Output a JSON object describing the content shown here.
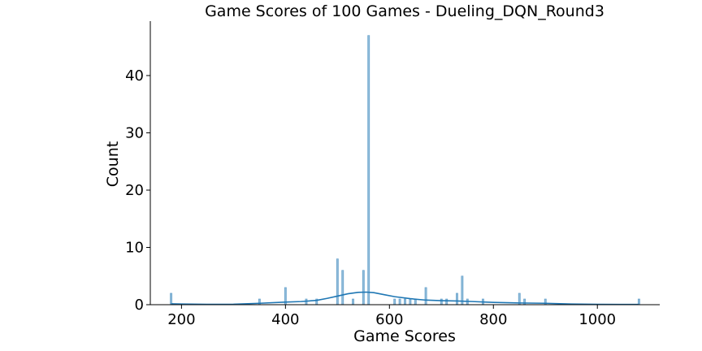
{
  "chart_data": {
    "type": "bar",
    "title": "Game Scores of 100 Games - Dueling_DQN_Round3",
    "xlabel": "Game Scores",
    "ylabel": "Count",
    "xlim": [
      140,
      1120
    ],
    "ylim": [
      0,
      49.5
    ],
    "x_ticks": [
      200,
      400,
      600,
      800,
      1000
    ],
    "y_ticks": [
      0,
      10,
      20,
      30,
      40
    ],
    "grid": false,
    "legend": "none",
    "bar_color": "#1f77b4",
    "kde_color": "#1f77b4",
    "bin_width": 3.6,
    "bins": [
      {
        "x": 180,
        "count": 2
      },
      {
        "x": 350,
        "count": 1
      },
      {
        "x": 400,
        "count": 3
      },
      {
        "x": 440,
        "count": 1
      },
      {
        "x": 460,
        "count": 1
      },
      {
        "x": 500,
        "count": 8
      },
      {
        "x": 510,
        "count": 6
      },
      {
        "x": 530,
        "count": 1
      },
      {
        "x": 550,
        "count": 6
      },
      {
        "x": 560,
        "count": 47
      },
      {
        "x": 610,
        "count": 1
      },
      {
        "x": 620,
        "count": 1
      },
      {
        "x": 630,
        "count": 1
      },
      {
        "x": 640,
        "count": 1
      },
      {
        "x": 650,
        "count": 1
      },
      {
        "x": 670,
        "count": 3
      },
      {
        "x": 700,
        "count": 1
      },
      {
        "x": 710,
        "count": 1
      },
      {
        "x": 730,
        "count": 2
      },
      {
        "x": 740,
        "count": 5
      },
      {
        "x": 750,
        "count": 1
      },
      {
        "x": 780,
        "count": 1
      },
      {
        "x": 850,
        "count": 2
      },
      {
        "x": 860,
        "count": 1
      },
      {
        "x": 900,
        "count": 1
      },
      {
        "x": 1080,
        "count": 1
      }
    ],
    "kde": {
      "x": [
        180,
        200,
        250,
        300,
        350,
        400,
        430,
        460,
        480,
        500,
        520,
        540,
        555,
        570,
        590,
        610,
        640,
        670,
        700,
        730,
        760,
        800,
        850,
        900,
        950,
        1000,
        1050,
        1080
      ],
      "y": [
        0.15,
        0.12,
        0.06,
        0.08,
        0.25,
        0.45,
        0.55,
        0.75,
        1.1,
        1.5,
        1.9,
        2.15,
        2.2,
        2.1,
        1.75,
        1.4,
        1.05,
        0.8,
        0.7,
        0.65,
        0.55,
        0.4,
        0.3,
        0.25,
        0.12,
        0.06,
        0.05,
        0.05
      ]
    }
  }
}
